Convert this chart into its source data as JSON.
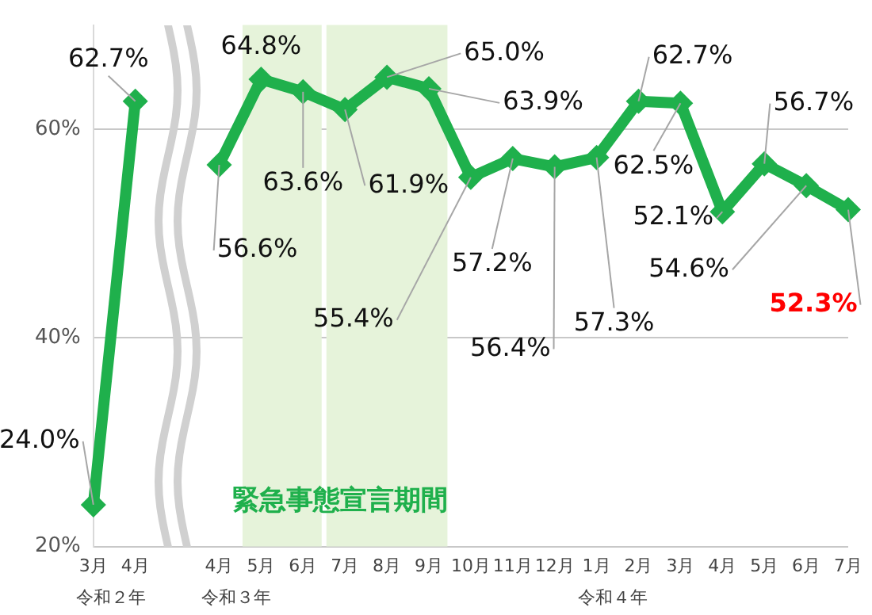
{
  "chart_data": {
    "type": "line",
    "categories": [
      "3月",
      "4月",
      null,
      "4月",
      "5月",
      "6月",
      "7月",
      "8月",
      "9月",
      "10月",
      "11月",
      "12月",
      "1月",
      "2月",
      "3月",
      "4月",
      "5月",
      "6月",
      "7月"
    ],
    "series": [
      {
        "color": "#1fb04c",
        "values": [
          24.0,
          62.7,
          null,
          56.6,
          64.8,
          63.6,
          61.9,
          65.0,
          63.9,
          55.4,
          57.2,
          56.4,
          57.3,
          62.7,
          62.5,
          52.1,
          56.7,
          54.6,
          52.3
        ]
      }
    ],
    "ylim": [
      20,
      70
    ],
    "yticks": [
      {
        "value": 20,
        "label": "20%"
      },
      {
        "value": 40,
        "label": "40%"
      },
      {
        "value": 60,
        "label": "60%"
      }
    ],
    "grid": "y",
    "marker": "diamond",
    "line_style": "solid",
    "legend": false,
    "value_labels": [
      "24.0%",
      "62.7%",
      null,
      "56.6%",
      "64.8%",
      "63.6%",
      "61.9%",
      "65.0%",
      "63.9%",
      "55.4%",
      "57.2%",
      "56.4%",
      "57.3%",
      "62.7%",
      "62.5%",
      "52.1%",
      "56.7%",
      "54.6%",
      "52.3%"
    ],
    "bands": [
      {
        "axis": "x",
        "from": "5月",
        "to": "6月",
        "color": "#e6f3da"
      },
      {
        "axis": "x",
        "from": "7月",
        "to": "9月",
        "color": "#e6f3da"
      }
    ],
    "annotations": [
      "緊急事態宣言期間",
      "令和２年",
      "令和３年",
      "令和４年"
    ]
  }
}
